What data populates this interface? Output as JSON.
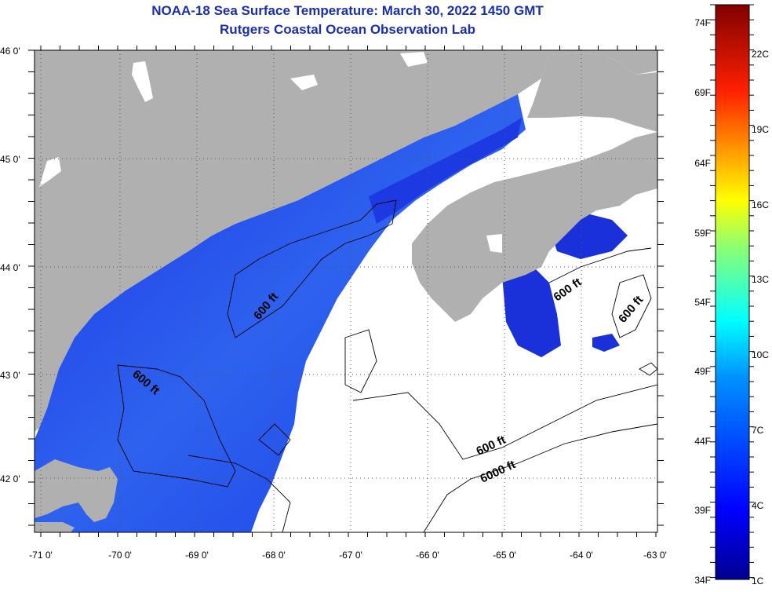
{
  "title": "NOAA-18 Sea Surface Temperature:  March 30, 2022 1450 GMT",
  "subtitle": "Rutgers Coastal Ocean Observation Lab",
  "colors": {
    "title": "#1a2fa8",
    "land": "#b0b0b0",
    "nodata": "#ffffff",
    "water_cold": "#1a2fe0",
    "water_warm": "#2f6cf0"
  },
  "map": {
    "lat_labels": [
      "46 0'",
      "45 0'",
      "44 0'",
      "43 0'",
      "42 0'"
    ],
    "lon_labels": [
      "-71 0'",
      "-70 0'",
      "-69 0'",
      "-68 0'",
      "-67 0'",
      "-66 0'",
      "-65 0'",
      "-64 0'",
      "-63 0'"
    ],
    "contour_labels": [
      "600 ft",
      "600 ft",
      "600 ft",
      "600 ft",
      "600 ft",
      "6000 ft"
    ]
  },
  "colorbar": {
    "fahrenheit_labels": [
      "74F",
      "69F",
      "64F",
      "59F",
      "54F",
      "49F",
      "44F",
      "39F",
      "34F"
    ],
    "celsius_labels": [
      "22C",
      "19C",
      "16C",
      "13C",
      "10C",
      "7C",
      "4C",
      "1C"
    ]
  }
}
